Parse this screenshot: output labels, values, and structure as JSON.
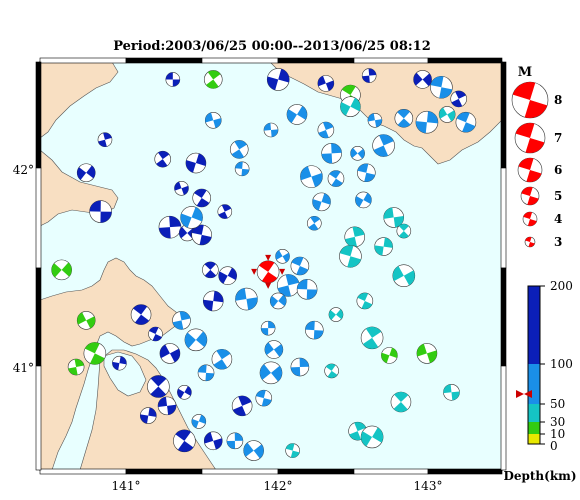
{
  "title": "Period:2003/06/25 00:00--2013/06/25 08:12",
  "map": {
    "lon_range": [
      140.4,
      143.6
    ],
    "lat_range": [
      40.45,
      42.55
    ],
    "lon_ticks": [
      "141°",
      "142°",
      "143°"
    ],
    "lat_ticks": [
      "42°",
      "41°"
    ],
    "sea_color": "#e8ffff",
    "land_color": "#f8dfc2"
  },
  "legend": {
    "magnitude_title": "M",
    "magnitude_labels": [
      "8",
      "7",
      "6",
      "5",
      "4",
      "3"
    ],
    "depth_title": "Depth(km)",
    "depth_labels": [
      "200",
      "100",
      "50",
      "30",
      "10",
      "0"
    ]
  },
  "colors": {
    "deep": "#0b1fb8",
    "mid": "#1a8fe8",
    "shallow": "#15c4c4",
    "green": "#33cc11",
    "mainshock": "#ff0000"
  },
  "mainshock": {
    "lon": 141.98,
    "lat": 41.47,
    "depth": 63
  },
  "events": [
    {
      "lon": 141.32,
      "lat": 42.46,
      "d": 180
    },
    {
      "lon": 141.6,
      "lat": 42.46,
      "d": 20
    },
    {
      "lon": 142.05,
      "lat": 42.46,
      "d": 160
    },
    {
      "lon": 142.38,
      "lat": 42.44,
      "d": 180
    },
    {
      "lon": 142.55,
      "lat": 42.38,
      "d": 20
    },
    {
      "lon": 142.68,
      "lat": 42.48,
      "d": 120
    },
    {
      "lon": 143.05,
      "lat": 42.46,
      "d": 120
    },
    {
      "lon": 143.18,
      "lat": 42.42,
      "d": 100
    },
    {
      "lon": 143.3,
      "lat": 42.36,
      "d": 110
    },
    {
      "lon": 142.55,
      "lat": 42.32,
      "d": 60
    },
    {
      "lon": 142.72,
      "lat": 42.25,
      "d": 90
    },
    {
      "lon": 142.92,
      "lat": 42.26,
      "d": 80
    },
    {
      "lon": 143.08,
      "lat": 42.24,
      "d": 70
    },
    {
      "lon": 143.22,
      "lat": 42.28,
      "d": 60
    },
    {
      "lon": 143.35,
      "lat": 42.24,
      "d": 70
    },
    {
      "lon": 140.85,
      "lat": 42.15,
      "d": 190
    },
    {
      "lon": 140.72,
      "lat": 41.98,
      "d": 180
    },
    {
      "lon": 140.82,
      "lat": 41.78,
      "d": 160
    },
    {
      "lon": 141.25,
      "lat": 42.05,
      "d": 120
    },
    {
      "lon": 141.48,
      "lat": 42.03,
      "d": 120
    },
    {
      "lon": 141.38,
      "lat": 41.9,
      "d": 180
    },
    {
      "lon": 141.52,
      "lat": 41.85,
      "d": 160
    },
    {
      "lon": 141.3,
      "lat": 41.7,
      "d": 140
    },
    {
      "lon": 141.42,
      "lat": 41.67,
      "d": 190
    },
    {
      "lon": 141.52,
      "lat": 41.66,
      "d": 180
    },
    {
      "lon": 141.68,
      "lat": 41.78,
      "d": 110
    },
    {
      "lon": 141.7,
      "lat": 41.45,
      "d": 120
    },
    {
      "lon": 141.83,
      "lat": 41.33,
      "d": 100
    },
    {
      "lon": 141.58,
      "lat": 41.48,
      "d": 110
    },
    {
      "lon": 141.6,
      "lat": 41.32,
      "d": 190
    },
    {
      "lon": 142.08,
      "lat": 41.55,
      "d": 100
    },
    {
      "lon": 142.2,
      "lat": 41.5,
      "d": 95
    },
    {
      "lon": 142.12,
      "lat": 41.4,
      "d": 90
    },
    {
      "lon": 142.05,
      "lat": 41.32,
      "d": 95
    },
    {
      "lon": 142.25,
      "lat": 41.38,
      "d": 80
    },
    {
      "lon": 142.3,
      "lat": 41.72,
      "d": 80
    },
    {
      "lon": 142.35,
      "lat": 41.83,
      "d": 90
    },
    {
      "lon": 142.28,
      "lat": 41.96,
      "d": 85
    },
    {
      "lon": 142.45,
      "lat": 41.95,
      "d": 80
    },
    {
      "lon": 142.42,
      "lat": 42.08,
      "d": 85
    },
    {
      "lon": 142.6,
      "lat": 42.08,
      "d": 75
    },
    {
      "lon": 142.66,
      "lat": 41.98,
      "d": 80
    },
    {
      "lon": 142.78,
      "lat": 42.12,
      "d": 70
    },
    {
      "lon": 142.64,
      "lat": 41.84,
      "d": 70
    },
    {
      "lon": 142.85,
      "lat": 41.75,
      "d": 55
    },
    {
      "lon": 142.92,
      "lat": 41.68,
      "d": 50
    },
    {
      "lon": 142.78,
      "lat": 41.6,
      "d": 60
    },
    {
      "lon": 142.92,
      "lat": 41.45,
      "d": 55
    },
    {
      "lon": 142.65,
      "lat": 41.32,
      "d": 50
    },
    {
      "lon": 142.58,
      "lat": 41.65,
      "d": 55
    },
    {
      "lon": 142.45,
      "lat": 41.25,
      "d": 60
    },
    {
      "lon": 142.3,
      "lat": 41.17,
      "d": 80
    },
    {
      "lon": 142.7,
      "lat": 41.13,
      "d": 45
    },
    {
      "lon": 142.82,
      "lat": 41.04,
      "d": 20
    },
    {
      "lon": 143.08,
      "lat": 41.05,
      "d": 25
    },
    {
      "lon": 142.42,
      "lat": 40.96,
      "d": 50
    },
    {
      "lon": 142.2,
      "lat": 40.98,
      "d": 80
    },
    {
      "lon": 142.0,
      "lat": 40.95,
      "d": 90
    },
    {
      "lon": 141.95,
      "lat": 40.82,
      "d": 100
    },
    {
      "lon": 141.8,
      "lat": 40.78,
      "d": 180
    },
    {
      "lon": 141.4,
      "lat": 40.85,
      "d": 110
    },
    {
      "lon": 141.28,
      "lat": 40.78,
      "d": 160
    },
    {
      "lon": 141.22,
      "lat": 40.88,
      "d": 130
    },
    {
      "lon": 141.15,
      "lat": 40.73,
      "d": 200
    },
    {
      "lon": 141.3,
      "lat": 41.05,
      "d": 120
    },
    {
      "lon": 141.2,
      "lat": 41.15,
      "d": 110
    },
    {
      "lon": 141.38,
      "lat": 41.22,
      "d": 90
    },
    {
      "lon": 141.48,
      "lat": 41.12,
      "d": 100
    },
    {
      "lon": 141.55,
      "lat": 40.95,
      "d": 100
    },
    {
      "lon": 141.66,
      "lat": 41.02,
      "d": 100
    },
    {
      "lon": 141.5,
      "lat": 40.7,
      "d": 100
    },
    {
      "lon": 141.6,
      "lat": 40.6,
      "d": 120
    },
    {
      "lon": 141.4,
      "lat": 40.6,
      "d": 130
    },
    {
      "lon": 141.75,
      "lat": 40.6,
      "d": 90
    },
    {
      "lon": 141.88,
      "lat": 40.55,
      "d": 100
    },
    {
      "lon": 142.15,
      "lat": 40.55,
      "d": 60
    },
    {
      "lon": 142.6,
      "lat": 40.65,
      "d": 45
    },
    {
      "lon": 142.7,
      "lat": 40.62,
      "d": 45
    },
    {
      "lon": 143.25,
      "lat": 40.85,
      "d": 50
    },
    {
      "lon": 142.9,
      "lat": 40.8,
      "d": 60
    },
    {
      "lon": 140.95,
      "lat": 41.0,
      "d": 170
    },
    {
      "lon": 140.72,
      "lat": 41.22,
      "d": 20
    },
    {
      "lon": 140.78,
      "lat": 41.05,
      "d": 20
    },
    {
      "lon": 140.65,
      "lat": 40.98,
      "d": 15
    },
    {
      "lon": 140.55,
      "lat": 41.48,
      "d": 18
    },
    {
      "lon": 141.8,
      "lat": 42.0,
      "d": 95
    },
    {
      "lon": 141.78,
      "lat": 42.1,
      "d": 100
    },
    {
      "lon": 141.45,
      "lat": 41.75,
      "d": 95
    },
    {
      "lon": 141.6,
      "lat": 42.25,
      "d": 80
    },
    {
      "lon": 141.1,
      "lat": 41.25,
      "d": 180
    },
    {
      "lon": 141.98,
      "lat": 41.18,
      "d": 85
    },
    {
      "lon": 142.02,
      "lat": 41.07,
      "d": 95
    },
    {
      "lon": 142.55,
      "lat": 41.55,
      "d": 60
    },
    {
      "lon": 142.38,
      "lat": 42.2,
      "d": 70
    },
    {
      "lon": 142.18,
      "lat": 42.28,
      "d": 80
    },
    {
      "lon": 142.0,
      "lat": 42.2,
      "d": 90
    }
  ]
}
